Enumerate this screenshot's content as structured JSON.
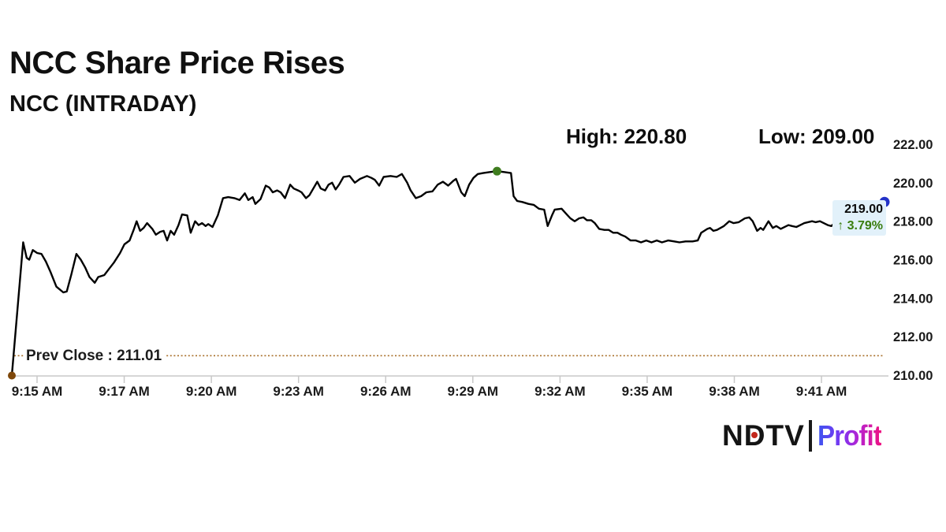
{
  "title": "NCC Share Price Rises",
  "subtitle": "NCC (INTRADAY)",
  "stats": {
    "high_label": "High: 220.80",
    "low_label": "Low: 209.00"
  },
  "prev_close": {
    "label": "Prev Close : 211.01",
    "value": 211.01
  },
  "last_price": {
    "value_label": "219.00",
    "change_label": "↑ 3.79%"
  },
  "logo": {
    "ndtv_n": "N",
    "ndtv_d": "D",
    "ndtv_tv": "TV",
    "profit": "Profit"
  },
  "colors": {
    "line": "#000000",
    "axis": "#c8c8c8",
    "axis_text": "#1a1a1a",
    "prev_close_line": "#a9712c",
    "gain_green": "#3a7d0e",
    "label_bg": "#e2f1fa",
    "open_marker": "#7e480b",
    "high_marker": "#3f7d1f",
    "last_marker": "#2433c8"
  },
  "chart_data": {
    "type": "line",
    "title": "NCC (INTRADAY)",
    "xlabel": "",
    "ylabel": "",
    "ylim": [
      210,
      222
    ],
    "grid": false,
    "high": 220.8,
    "low": 209.0,
    "prev_close": 211.01,
    "last": 219.0,
    "change_pct": 3.79,
    "x_ticks": [
      "9:15 AM",
      "9:17 AM",
      "9:20 AM",
      "9:23 AM",
      "9:26 AM",
      "9:29 AM",
      "9:32 AM",
      "9:35 AM",
      "9:38 AM",
      "9:41 AM"
    ],
    "y_ticks": [
      "222.00",
      "220.00",
      "218.00",
      "216.00",
      "214.00",
      "212.00",
      "210.00"
    ],
    "markers": [
      {
        "name": "open-marker",
        "at": 0.0,
        "price": 209.98,
        "color": "#7e480b",
        "r": 5
      },
      {
        "name": "high-marker",
        "at": 0.556,
        "price": 220.6,
        "color": "#3f7d1f",
        "r": 5.5
      },
      {
        "name": "last-price-marker",
        "at": 1.0,
        "price": 219.0,
        "color": "#2433c8",
        "r": 6.5
      }
    ],
    "series": [
      [
        0.0,
        209.98
      ],
      [
        0.013,
        216.9
      ],
      [
        0.017,
        216.1
      ],
      [
        0.02,
        216.0
      ],
      [
        0.024,
        216.5
      ],
      [
        0.029,
        216.35
      ],
      [
        0.034,
        216.3
      ],
      [
        0.039,
        215.9
      ],
      [
        0.044,
        215.4
      ],
      [
        0.051,
        214.6
      ],
      [
        0.059,
        214.3
      ],
      [
        0.063,
        214.35
      ],
      [
        0.068,
        215.2
      ],
      [
        0.074,
        216.3
      ],
      [
        0.079,
        216.0
      ],
      [
        0.084,
        215.6
      ],
      [
        0.089,
        215.1
      ],
      [
        0.095,
        214.8
      ],
      [
        0.099,
        215.1
      ],
      [
        0.106,
        215.2
      ],
      [
        0.111,
        215.5
      ],
      [
        0.117,
        215.85
      ],
      [
        0.124,
        216.35
      ],
      [
        0.129,
        216.8
      ],
      [
        0.135,
        217.0
      ],
      [
        0.14,
        217.6
      ],
      [
        0.143,
        218.0
      ],
      [
        0.147,
        217.5
      ],
      [
        0.151,
        217.65
      ],
      [
        0.155,
        217.9
      ],
      [
        0.161,
        217.6
      ],
      [
        0.165,
        217.3
      ],
      [
        0.17,
        217.45
      ],
      [
        0.174,
        217.5
      ],
      [
        0.178,
        217.0
      ],
      [
        0.182,
        217.5
      ],
      [
        0.186,
        217.3
      ],
      [
        0.191,
        217.8
      ],
      [
        0.195,
        218.35
      ],
      [
        0.201,
        218.3
      ],
      [
        0.205,
        217.4
      ],
      [
        0.21,
        218.0
      ],
      [
        0.214,
        217.8
      ],
      [
        0.218,
        217.9
      ],
      [
        0.222,
        217.75
      ],
      [
        0.225,
        217.85
      ],
      [
        0.23,
        217.7
      ],
      [
        0.236,
        218.3
      ],
      [
        0.242,
        219.2
      ],
      [
        0.248,
        219.25
      ],
      [
        0.255,
        219.2
      ],
      [
        0.261,
        219.1
      ],
      [
        0.267,
        219.45
      ],
      [
        0.271,
        219.1
      ],
      [
        0.276,
        219.25
      ],
      [
        0.279,
        218.9
      ],
      [
        0.285,
        219.15
      ],
      [
        0.291,
        219.85
      ],
      [
        0.295,
        219.75
      ],
      [
        0.299,
        219.5
      ],
      [
        0.304,
        219.6
      ],
      [
        0.308,
        219.5
      ],
      [
        0.313,
        219.2
      ],
      [
        0.319,
        219.9
      ],
      [
        0.323,
        219.7
      ],
      [
        0.328,
        219.6
      ],
      [
        0.332,
        219.5
      ],
      [
        0.337,
        219.2
      ],
      [
        0.341,
        219.35
      ],
      [
        0.35,
        220.05
      ],
      [
        0.354,
        219.7
      ],
      [
        0.359,
        219.6
      ],
      [
        0.363,
        219.9
      ],
      [
        0.367,
        220.0
      ],
      [
        0.371,
        219.65
      ],
      [
        0.375,
        219.9
      ],
      [
        0.38,
        220.3
      ],
      [
        0.387,
        220.35
      ],
      [
        0.393,
        220.0
      ],
      [
        0.399,
        220.2
      ],
      [
        0.407,
        220.35
      ],
      [
        0.412,
        220.25
      ],
      [
        0.416,
        220.15
      ],
      [
        0.421,
        219.85
      ],
      [
        0.426,
        220.3
      ],
      [
        0.434,
        220.35
      ],
      [
        0.441,
        220.3
      ],
      [
        0.447,
        220.45
      ],
      [
        0.453,
        220.0
      ],
      [
        0.457,
        219.6
      ],
      [
        0.463,
        219.2
      ],
      [
        0.469,
        219.3
      ],
      [
        0.475,
        219.5
      ],
      [
        0.482,
        219.55
      ],
      [
        0.488,
        219.9
      ],
      [
        0.494,
        220.05
      ],
      [
        0.5,
        219.85
      ],
      [
        0.506,
        220.1
      ],
      [
        0.509,
        220.2
      ],
      [
        0.515,
        219.5
      ],
      [
        0.519,
        219.3
      ],
      [
        0.524,
        219.9
      ],
      [
        0.529,
        220.25
      ],
      [
        0.534,
        220.45
      ],
      [
        0.54,
        220.5
      ],
      [
        0.547,
        220.55
      ],
      [
        0.556,
        220.6
      ],
      [
        0.565,
        220.55
      ],
      [
        0.572,
        220.5
      ],
      [
        0.575,
        219.3
      ],
      [
        0.579,
        219.05
      ],
      [
        0.585,
        219.0
      ],
      [
        0.592,
        218.9
      ],
      [
        0.598,
        218.85
      ],
      [
        0.604,
        218.65
      ],
      [
        0.61,
        218.6
      ],
      [
        0.614,
        217.75
      ],
      [
        0.619,
        218.3
      ],
      [
        0.622,
        218.6
      ],
      [
        0.63,
        218.65
      ],
      [
        0.635,
        218.4
      ],
      [
        0.64,
        218.15
      ],
      [
        0.645,
        218.0
      ],
      [
        0.65,
        218.15
      ],
      [
        0.655,
        218.2
      ],
      [
        0.659,
        218.05
      ],
      [
        0.664,
        218.05
      ],
      [
        0.668,
        217.9
      ],
      [
        0.673,
        217.6
      ],
      [
        0.679,
        217.55
      ],
      [
        0.684,
        217.55
      ],
      [
        0.689,
        217.4
      ],
      [
        0.694,
        217.4
      ],
      [
        0.698,
        217.3
      ],
      [
        0.703,
        217.2
      ],
      [
        0.709,
        217.0
      ],
      [
        0.715,
        217.0
      ],
      [
        0.721,
        216.9
      ],
      [
        0.727,
        217.0
      ],
      [
        0.733,
        216.9
      ],
      [
        0.739,
        217.0
      ],
      [
        0.745,
        216.9
      ],
      [
        0.752,
        217.0
      ],
      [
        0.759,
        216.95
      ],
      [
        0.765,
        216.9
      ],
      [
        0.772,
        216.95
      ],
      [
        0.78,
        216.95
      ],
      [
        0.786,
        217.0
      ],
      [
        0.79,
        217.4
      ],
      [
        0.797,
        217.6
      ],
      [
        0.8,
        217.65
      ],
      [
        0.804,
        217.5
      ],
      [
        0.808,
        217.55
      ],
      [
        0.816,
        217.75
      ],
      [
        0.822,
        218.0
      ],
      [
        0.827,
        217.9
      ],
      [
        0.833,
        217.95
      ],
      [
        0.84,
        218.15
      ],
      [
        0.845,
        218.2
      ],
      [
        0.849,
        218.0
      ],
      [
        0.854,
        217.5
      ],
      [
        0.858,
        217.65
      ],
      [
        0.861,
        217.55
      ],
      [
        0.867,
        218.0
      ],
      [
        0.872,
        217.65
      ],
      [
        0.876,
        217.75
      ],
      [
        0.881,
        217.6
      ],
      [
        0.89,
        217.8
      ],
      [
        0.894,
        217.75
      ],
      [
        0.899,
        217.7
      ],
      [
        0.908,
        217.9
      ],
      [
        0.917,
        218.0
      ],
      [
        0.921,
        217.95
      ],
      [
        0.926,
        218.0
      ],
      [
        0.935,
        217.8
      ],
      [
        0.939,
        217.75
      ],
      [
        0.944,
        217.95
      ],
      [
        0.953,
        218.0
      ],
      [
        0.962,
        218.2
      ],
      [
        0.976,
        218.5
      ],
      [
        0.989,
        218.8
      ],
      [
        1.0,
        219.0
      ]
    ]
  }
}
